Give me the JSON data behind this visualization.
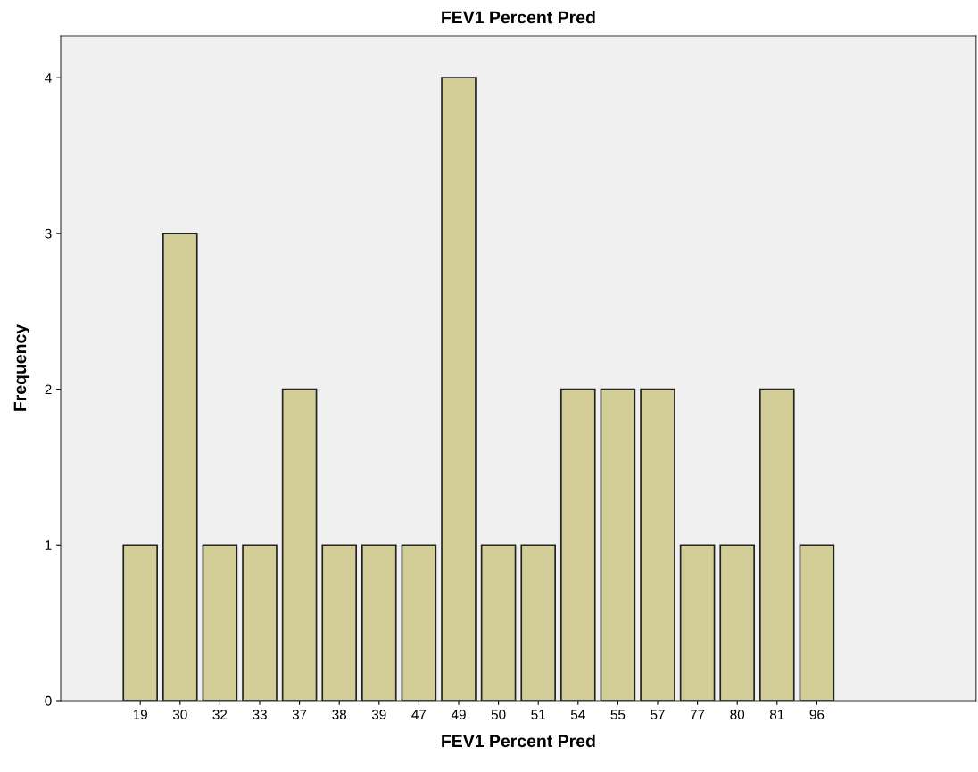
{
  "chart_data": {
    "type": "bar",
    "title": "FEV1 Percent Pred",
    "xlabel": "FEV1 Percent Pred",
    "ylabel": "Frequency",
    "categories": [
      "19",
      "30",
      "32",
      "33",
      "37",
      "38",
      "39",
      "47",
      "49",
      "50",
      "51",
      "54",
      "55",
      "57",
      "77",
      "80",
      "81",
      "96"
    ],
    "values": [
      1,
      3,
      1,
      1,
      2,
      1,
      1,
      1,
      4,
      1,
      1,
      2,
      2,
      2,
      1,
      1,
      2,
      1
    ],
    "color": "#d3ce97",
    "ylim": [
      0,
      4.27
    ],
    "yticks": [
      0,
      1,
      2,
      3,
      4
    ],
    "grid": false,
    "legend": false
  }
}
